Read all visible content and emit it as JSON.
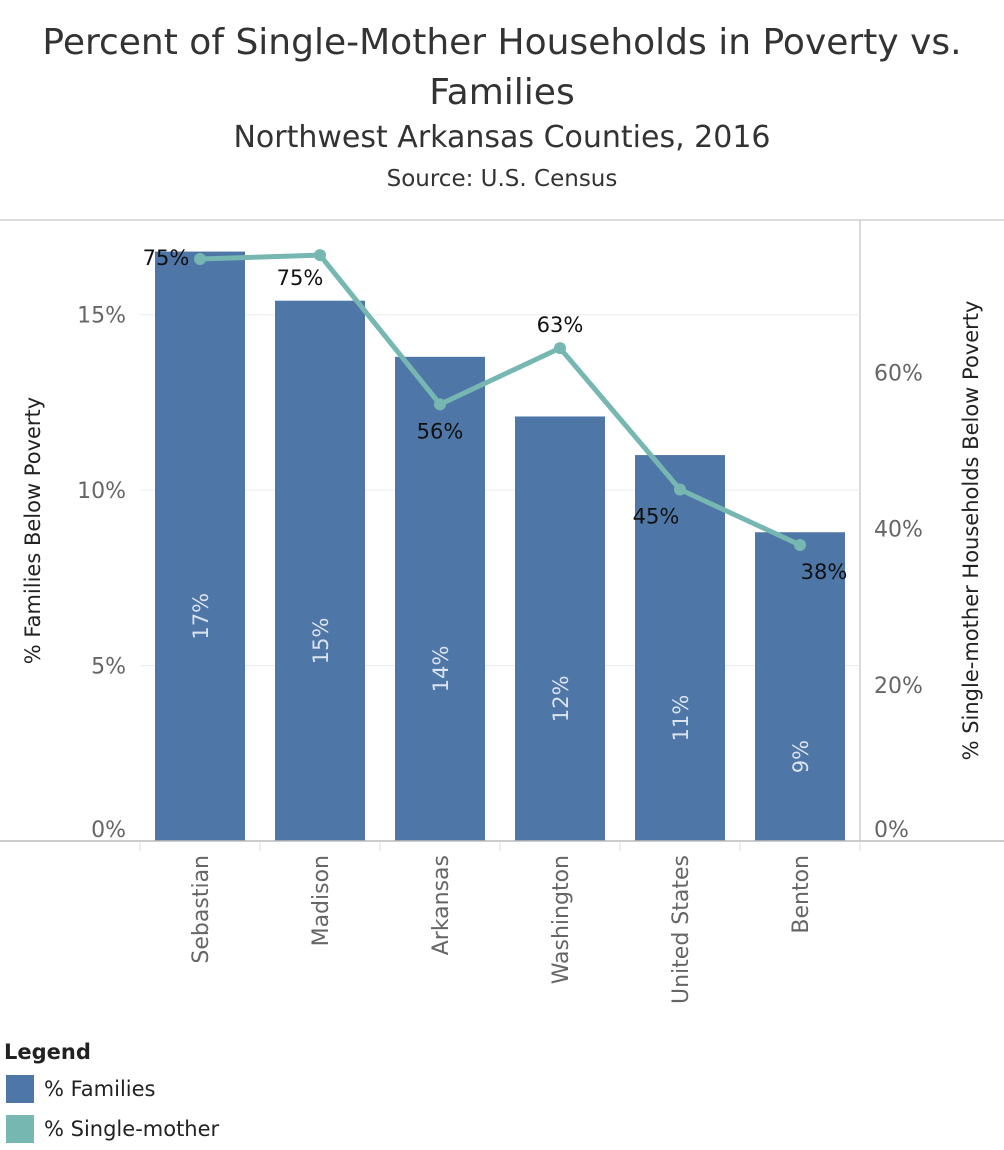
{
  "header": {
    "title": "Percent of Single-Mother Households in Poverty vs. Families",
    "subtitle": "Northwest Arkansas Counties, 2016",
    "source": "Source: U.S. Census"
  },
  "legend": {
    "title": "Legend",
    "items": [
      {
        "label": "% Families",
        "color": "#4e76a6"
      },
      {
        "label": "% Single-mother",
        "color": "#76b7b2"
      }
    ]
  },
  "chart_data": {
    "type": "bar",
    "title": "Percent of Single-Mother Households in Poverty vs. Families",
    "subtitle": "Northwest Arkansas Counties, 2016",
    "categories": [
      "Sebastian",
      "Madison",
      "Arkansas",
      "Washington",
      "United States",
      "Benton"
    ],
    "series": [
      {
        "name": "% Families",
        "kind": "bar",
        "axis": "left",
        "color": "#4e76a6",
        "values": [
          16.8,
          15.4,
          13.8,
          12.1,
          11.0,
          8.8
        ],
        "labels": [
          "17%",
          "15%",
          "14%",
          "12%",
          "11%",
          "9%"
        ]
      },
      {
        "name": "% Single-mother",
        "kind": "line",
        "axis": "right",
        "color": "#76b7b2",
        "values": [
          74.5,
          75.0,
          55.9,
          63.1,
          45.0,
          37.9
        ],
        "labels": [
          "75%",
          "75%",
          "56%",
          "63%",
          "45%",
          "38%"
        ]
      }
    ],
    "ylabel": "% Families Below Poverty",
    "ylim": [
      0,
      17.7
    ],
    "yticks": [
      0,
      5,
      10,
      15
    ],
    "ytick_labels": [
      "0%",
      "5%",
      "10%",
      "15%"
    ],
    "y2label": "% Single-mother Households Below Poverty",
    "y2lim": [
      0,
      79.5
    ],
    "y2ticks": [
      0,
      20,
      40,
      60
    ],
    "y2tick_labels": [
      "0%",
      "20%",
      "40%",
      "60%"
    ],
    "grid": true
  }
}
